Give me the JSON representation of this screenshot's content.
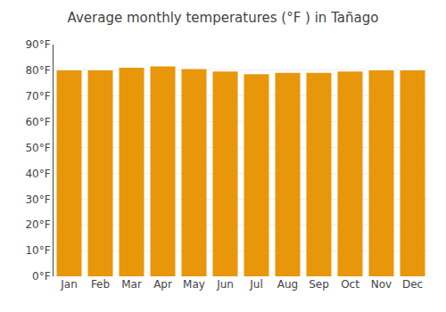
{
  "chart_data": {
    "type": "bar",
    "title": "Average monthly temperatures (°F ) in Tañago",
    "categories": [
      "Jan",
      "Feb",
      "Mar",
      "Apr",
      "May",
      "Jun",
      "Jul",
      "Aug",
      "Sep",
      "Oct",
      "Nov",
      "Dec"
    ],
    "values": [
      80,
      80,
      81,
      81.5,
      80.5,
      79.5,
      78.5,
      79,
      79,
      79.5,
      80,
      80
    ],
    "color": "#E8960A",
    "ylim": [
      0,
      90
    ],
    "yticks": [
      {
        "value": 0,
        "label": "0°F"
      },
      {
        "value": 10,
        "label": "10°F"
      },
      {
        "value": 20,
        "label": "20°F"
      },
      {
        "value": 30,
        "label": "30°F"
      },
      {
        "value": 40,
        "label": "40°F"
      },
      {
        "value": 50,
        "label": "50°F"
      },
      {
        "value": 60,
        "label": "60°F"
      },
      {
        "value": 70,
        "label": "70°F"
      },
      {
        "value": 80,
        "label": "80°F"
      },
      {
        "value": 90,
        "label": "90°F"
      }
    ],
    "grid": true
  }
}
